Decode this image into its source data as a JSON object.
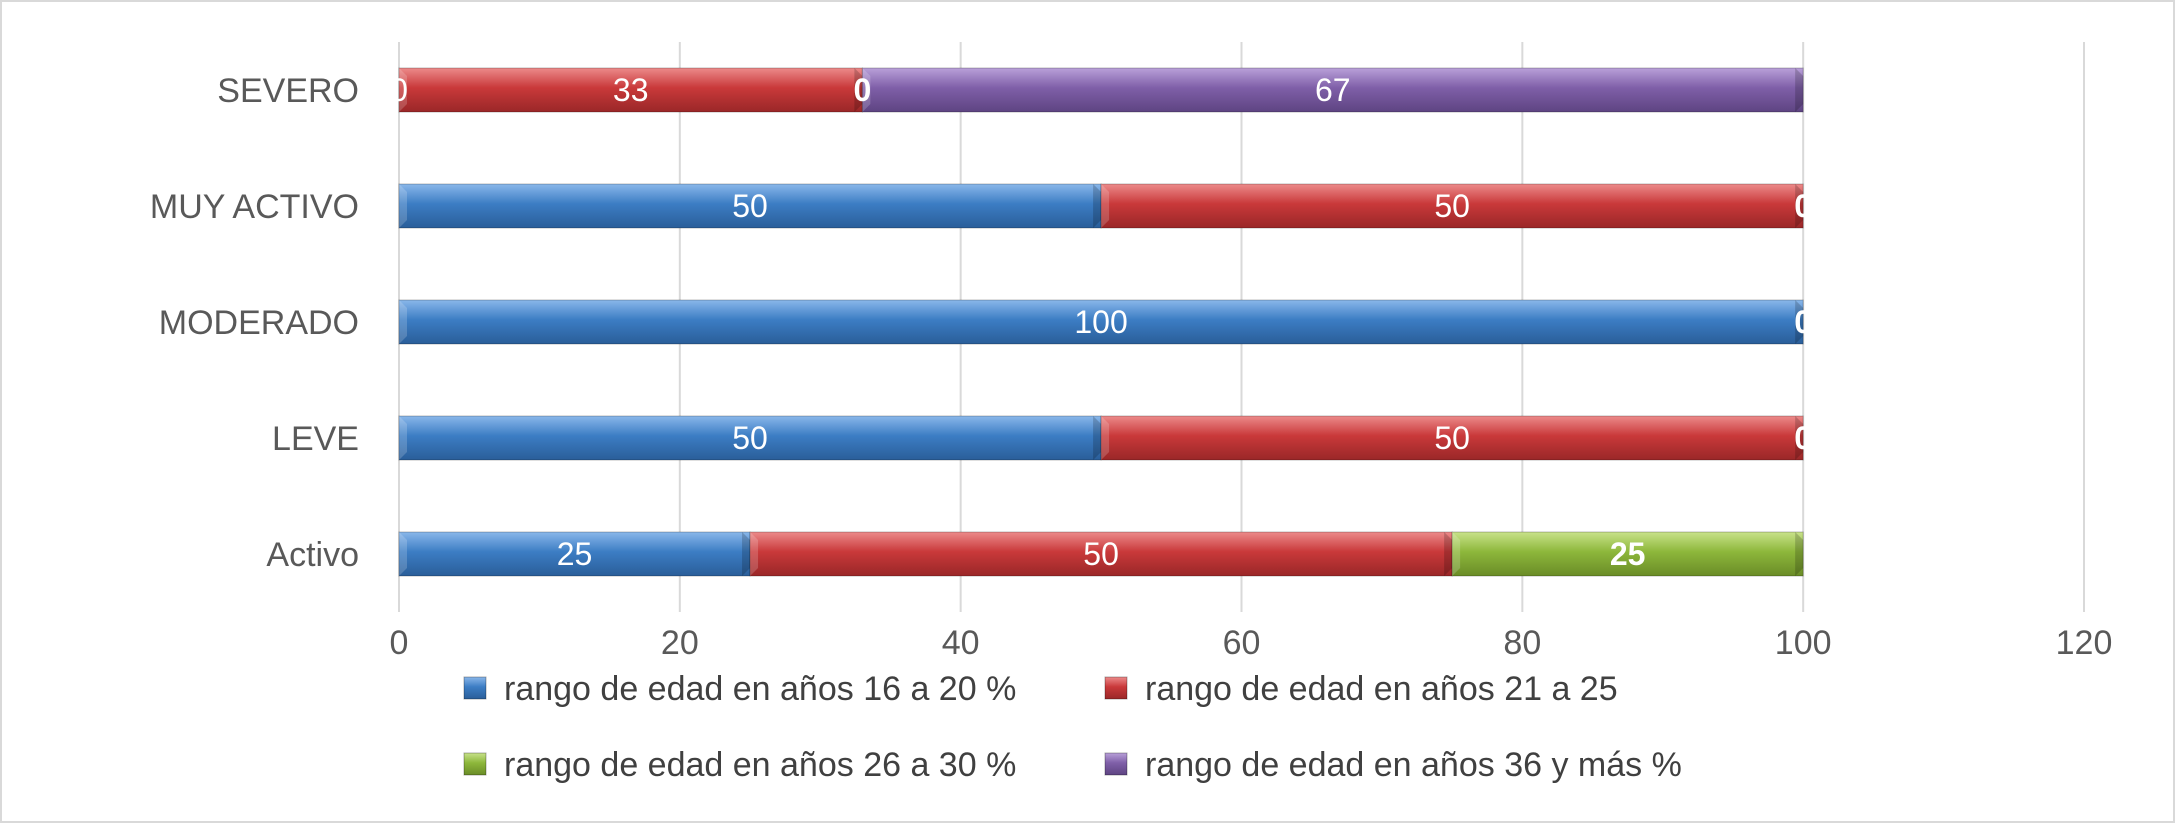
{
  "chart_data": {
    "type": "bar",
    "orientation": "horizontal",
    "stacked": true,
    "categories": [
      "Activo",
      "LEVE",
      "MODERADO",
      "MUY ACTIVO",
      "SEVERO"
    ],
    "series": [
      {
        "name": "rango de edad en años  16 a 20 %",
        "color": "#3c7dc4",
        "values": [
          25,
          50,
          100,
          50,
          0
        ],
        "labels": [
          "25",
          "50",
          "100",
          "50",
          "0"
        ]
      },
      {
        "name": "rango de edad en años  21 a 25",
        "color": "#c9393a",
        "values": [
          50,
          50,
          0,
          50,
          33
        ],
        "labels": [
          "50",
          "50",
          "0",
          "50",
          "33"
        ]
      },
      {
        "name": "rango de edad en años  26 a 30 %",
        "color": "#8db73b",
        "values": [
          25,
          0,
          0,
          0,
          0
        ],
        "labels": [
          "25",
          "0",
          "",
          "0",
          "0"
        ]
      },
      {
        "name": "rango de edad en años  36 y más %",
        "color": "#7f5fa8",
        "values": [
          0,
          0,
          0,
          0,
          67
        ],
        "labels": [
          "",
          "",
          "",
          "",
          "67"
        ]
      }
    ],
    "xlim": [
      0,
      120
    ],
    "xticks": [
      "0",
      "20",
      "40",
      "60",
      "80",
      "100",
      "120"
    ],
    "grid": true,
    "legend_position": "bottom"
  }
}
